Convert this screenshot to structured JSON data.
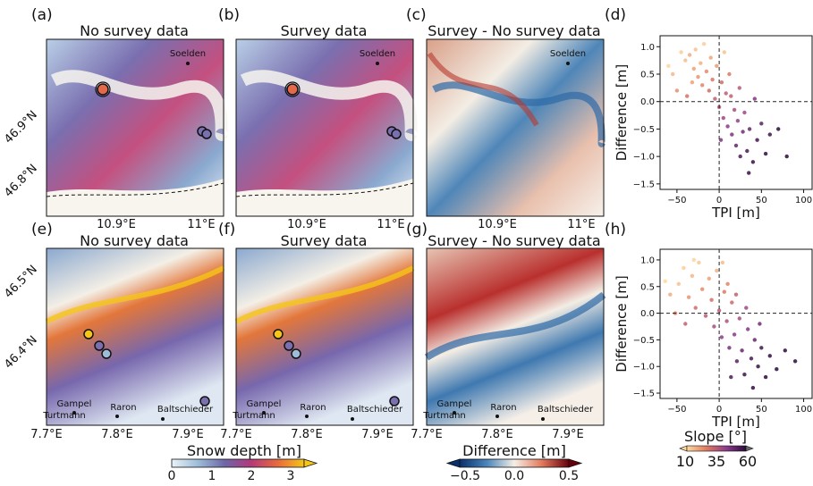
{
  "panel_labels": [
    "(a)",
    "(b)",
    "(c)",
    "(d)",
    "(e)",
    "(f)",
    "(g)",
    "(h)"
  ],
  "map_titles": [
    "No survey data",
    "Survey data",
    "Survey - No survey data",
    "No survey data",
    "Survey data",
    "Survey - No survey data"
  ],
  "top_region": {
    "lat_ticks": [
      "46.9°N",
      "46.8°N"
    ],
    "lon_ticks": [
      "10.9°E",
      "11°E"
    ],
    "places": [
      {
        "name": "Soelden"
      }
    ]
  },
  "bottom_region": {
    "lat_ticks": [
      "46.5°N",
      "46.4°N"
    ],
    "lon_ticks": [
      "7.7°E",
      "7.8°E",
      "7.9°E"
    ],
    "places": [
      {
        "name": "Gampel"
      },
      {
        "name": "Raron"
      },
      {
        "name": "Baltschieder"
      },
      {
        "name": "Turtmann"
      }
    ]
  },
  "colorbars": {
    "snow_depth": {
      "label": "Snow depth [m]",
      "ticks": [
        "0",
        "1",
        "2",
        "3"
      ],
      "colors": [
        "#eaf2f8",
        "#9dbcd8",
        "#6d66a8",
        "#b4387a",
        "#e86a3c",
        "#f5c518"
      ]
    },
    "difference": {
      "label": "Difference [m]",
      "ticks": [
        "−0.5",
        "0.0",
        "0.5"
      ],
      "colors": [
        "#08306b",
        "#4a86bb",
        "#f5efe6",
        "#e37b5d",
        "#67000d"
      ]
    },
    "slope": {
      "label": "Slope [°]",
      "ticks": [
        "10",
        "35",
        "60"
      ],
      "colors": [
        "#fdd9a0",
        "#e07a5f",
        "#8c3b8c",
        "#2a0a3a"
      ]
    }
  },
  "chart_data": [
    {
      "panel": "(d)",
      "type": "scatter",
      "xlabel": "TPI [m]",
      "ylabel": "Difference [m]",
      "xlim": [
        -70,
        110
      ],
      "ylim": [
        -1.6,
        1.2
      ],
      "xticks": [
        "−50",
        "0",
        "50",
        "100"
      ],
      "yticks": [
        "1.0",
        "0.5",
        "0.0",
        "−0.5",
        "−1.0",
        "−1.5"
      ],
      "xtick_values": [
        -50,
        0,
        50,
        100
      ],
      "ytick_values": [
        1.0,
        0.5,
        0.0,
        -0.5,
        -1.0,
        -1.5
      ],
      "reference_lines": {
        "x": 0,
        "y": 0
      },
      "color_by": "Slope [°]",
      "points": [
        {
          "x": -45,
          "y": 0.9,
          "slope": 12
        },
        {
          "x": -40,
          "y": 0.75,
          "slope": 15
        },
        {
          "x": -35,
          "y": 0.85,
          "slope": 18
        },
        {
          "x": -30,
          "y": 0.6,
          "slope": 20
        },
        {
          "x": -28,
          "y": 0.95,
          "slope": 14
        },
        {
          "x": -25,
          "y": 0.45,
          "slope": 22
        },
        {
          "x": -22,
          "y": 0.7,
          "slope": 17
        },
        {
          "x": -20,
          "y": 0.3,
          "slope": 25
        },
        {
          "x": -18,
          "y": 1.05,
          "slope": 12
        },
        {
          "x": -15,
          "y": 0.55,
          "slope": 24
        },
        {
          "x": -12,
          "y": 0.2,
          "slope": 30
        },
        {
          "x": -10,
          "y": 0.8,
          "slope": 19
        },
        {
          "x": -8,
          "y": 0.4,
          "slope": 28
        },
        {
          "x": -5,
          "y": 0.05,
          "slope": 33
        },
        {
          "x": -3,
          "y": 0.65,
          "slope": 21
        },
        {
          "x": 0,
          "y": -0.1,
          "slope": 36
        },
        {
          "x": 3,
          "y": 0.35,
          "slope": 30
        },
        {
          "x": 5,
          "y": -0.3,
          "slope": 40
        },
        {
          "x": 8,
          "y": 0.15,
          "slope": 34
        },
        {
          "x": 10,
          "y": -0.45,
          "slope": 44
        },
        {
          "x": 12,
          "y": 0.5,
          "slope": 27
        },
        {
          "x": 15,
          "y": -0.6,
          "slope": 46
        },
        {
          "x": 18,
          "y": -0.15,
          "slope": 38
        },
        {
          "x": 20,
          "y": -0.8,
          "slope": 50
        },
        {
          "x": 22,
          "y": -0.35,
          "slope": 42
        },
        {
          "x": 25,
          "y": -1.0,
          "slope": 54
        },
        {
          "x": 28,
          "y": -0.55,
          "slope": 48
        },
        {
          "x": 30,
          "y": -0.2,
          "slope": 40
        },
        {
          "x": 33,
          "y": -0.9,
          "slope": 55
        },
        {
          "x": 36,
          "y": -0.5,
          "slope": 50
        },
        {
          "x": 40,
          "y": -1.1,
          "slope": 58
        },
        {
          "x": 45,
          "y": -0.7,
          "slope": 56
        },
        {
          "x": 50,
          "y": -0.4,
          "slope": 52
        },
        {
          "x": 55,
          "y": -0.95,
          "slope": 59
        },
        {
          "x": 60,
          "y": -0.6,
          "slope": 57
        },
        {
          "x": 70,
          "y": -0.5,
          "slope": 60
        },
        {
          "x": 80,
          "y": -1.0,
          "slope": 60
        },
        {
          "x": -55,
          "y": 0.5,
          "slope": 16
        },
        {
          "x": -50,
          "y": 0.2,
          "slope": 23
        },
        {
          "x": -38,
          "y": 0.1,
          "slope": 29
        },
        {
          "x": -32,
          "y": 0.35,
          "slope": 20
        },
        {
          "x": 2,
          "y": -0.7,
          "slope": 45
        },
        {
          "x": 6,
          "y": 0.9,
          "slope": 14
        },
        {
          "x": 14,
          "y": 0.1,
          "slope": 33
        },
        {
          "x": 24,
          "y": 0.25,
          "slope": 35
        },
        {
          "x": 35,
          "y": -1.3,
          "slope": 58
        },
        {
          "x": 42,
          "y": 0.05,
          "slope": 45
        },
        {
          "x": -60,
          "y": 0.65,
          "slope": 11
        }
      ]
    },
    {
      "panel": "(h)",
      "type": "scatter",
      "xlabel": "TPI [m]",
      "ylabel": "Difference [m]",
      "xlim": [
        -70,
        110
      ],
      "ylim": [
        -1.6,
        1.2
      ],
      "xticks": [
        "−50",
        "0",
        "50",
        "100"
      ],
      "yticks": [
        "1.0",
        "0.5",
        "0.0",
        "−0.5",
        "−1.0",
        "−1.5"
      ],
      "xtick_values": [
        -50,
        0,
        50,
        100
      ],
      "ytick_values": [
        1.0,
        0.5,
        0.0,
        -0.5,
        -1.0,
        -1.5
      ],
      "reference_lines": {
        "x": 0,
        "y": 0
      },
      "color_by": "Slope [°]",
      "points": [
        {
          "x": -48,
          "y": 0.55,
          "slope": 14
        },
        {
          "x": -42,
          "y": 0.85,
          "slope": 12
        },
        {
          "x": -36,
          "y": 0.3,
          "slope": 22
        },
        {
          "x": -32,
          "y": 0.7,
          "slope": 16
        },
        {
          "x": -28,
          "y": 0.1,
          "slope": 30
        },
        {
          "x": -24,
          "y": 0.95,
          "slope": 13
        },
        {
          "x": -20,
          "y": 0.45,
          "slope": 24
        },
        {
          "x": -16,
          "y": -0.05,
          "slope": 34
        },
        {
          "x": -12,
          "y": 0.65,
          "slope": 20
        },
        {
          "x": -9,
          "y": 0.25,
          "slope": 29
        },
        {
          "x": -6,
          "y": -0.25,
          "slope": 38
        },
        {
          "x": -3,
          "y": 0.8,
          "slope": 17
        },
        {
          "x": 0,
          "y": 0.05,
          "slope": 35
        },
        {
          "x": 3,
          "y": -0.45,
          "slope": 43
        },
        {
          "x": 6,
          "y": 0.4,
          "slope": 27
        },
        {
          "x": 9,
          "y": -0.15,
          "slope": 37
        },
        {
          "x": 12,
          "y": -0.65,
          "slope": 47
        },
        {
          "x": 15,
          "y": 0.2,
          "slope": 31
        },
        {
          "x": 18,
          "y": -0.4,
          "slope": 44
        },
        {
          "x": 21,
          "y": -0.9,
          "slope": 52
        },
        {
          "x": 24,
          "y": -0.1,
          "slope": 39
        },
        {
          "x": 27,
          "y": -0.7,
          "slope": 50
        },
        {
          "x": 30,
          "y": -1.15,
          "slope": 57
        },
        {
          "x": 34,
          "y": -0.3,
          "slope": 45
        },
        {
          "x": 38,
          "y": -0.85,
          "slope": 55
        },
        {
          "x": 42,
          "y": -0.5,
          "slope": 50
        },
        {
          "x": 46,
          "y": -1.0,
          "slope": 58
        },
        {
          "x": 50,
          "y": -0.65,
          "slope": 56
        },
        {
          "x": 55,
          "y": -1.2,
          "slope": 60
        },
        {
          "x": 60,
          "y": -0.8,
          "slope": 59
        },
        {
          "x": 68,
          "y": -1.05,
          "slope": 60
        },
        {
          "x": 78,
          "y": -0.7,
          "slope": 60
        },
        {
          "x": 90,
          "y": -0.9,
          "slope": 60
        },
        {
          "x": -58,
          "y": 0.35,
          "slope": 18
        },
        {
          "x": -52,
          "y": 0.0,
          "slope": 26
        },
        {
          "x": -40,
          "y": -0.2,
          "slope": 33
        },
        {
          "x": -30,
          "y": 1.0,
          "slope": 11
        },
        {
          "x": 4,
          "y": 0.95,
          "slope": 15
        },
        {
          "x": 10,
          "y": 0.55,
          "slope": 25
        },
        {
          "x": 20,
          "y": 0.35,
          "slope": 33
        },
        {
          "x": 32,
          "y": 0.1,
          "slope": 40
        },
        {
          "x": 40,
          "y": -1.4,
          "slope": 59
        },
        {
          "x": -64,
          "y": 0.6,
          "slope": 10
        },
        {
          "x": 14,
          "y": -1.2,
          "slope": 54
        },
        {
          "x": 48,
          "y": -0.2,
          "slope": 48
        }
      ]
    }
  ]
}
